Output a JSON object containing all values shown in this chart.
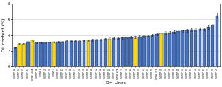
{
  "xlabel": "DH Lines",
  "ylabel": "Oil content (%)",
  "ylim": [
    0,
    8
  ],
  "yticks": [
    0,
    2,
    4,
    6,
    8
  ],
  "n_bars": 48,
  "values": [
    2.4,
    2.85,
    2.9,
    3.15,
    3.3,
    3.05,
    3.05,
    3.08,
    3.1,
    3.12,
    3.15,
    3.18,
    3.2,
    3.22,
    3.25,
    3.28,
    3.3,
    3.35,
    3.38,
    3.4,
    3.45,
    3.5,
    3.55,
    3.6,
    3.62,
    3.65,
    3.68,
    3.72,
    3.75,
    3.8,
    3.85,
    3.9,
    4.0,
    4.1,
    4.2,
    4.3,
    4.35,
    4.4,
    4.5,
    4.55,
    4.6,
    4.65,
    4.7,
    4.75,
    4.8,
    5.0,
    5.2,
    6.5
  ],
  "errors": [
    0.06,
    0.08,
    0.09,
    0.12,
    0.09,
    0.06,
    0.06,
    0.07,
    0.07,
    0.07,
    0.08,
    0.08,
    0.09,
    0.09,
    0.09,
    0.09,
    0.1,
    0.1,
    0.1,
    0.1,
    0.1,
    0.1,
    0.1,
    0.12,
    0.12,
    0.12,
    0.12,
    0.12,
    0.12,
    0.12,
    0.12,
    0.13,
    0.14,
    0.15,
    0.15,
    0.15,
    0.15,
    0.15,
    0.16,
    0.16,
    0.17,
    0.17,
    0.18,
    0.18,
    0.18,
    0.2,
    0.22,
    0.28
  ],
  "yellow_indices": [
    1,
    2,
    4,
    9,
    17,
    22,
    28,
    34
  ],
  "tick_labels": [
    "SOWP 92",
    "SOWP 84",
    "SOWP 27",
    "SOWP 93",
    "SOWP 103A",
    "SOWP 4A",
    "SOWP 6",
    "SOWP 10",
    "SOWP 34",
    "SOWP 3",
    "SOWP 42",
    "SOWP 43",
    "SOWP 13",
    "SOWP 48",
    "SOWP 62",
    "SOWP 11",
    "SOWP 60",
    "SOWP 31",
    "SOWP 26",
    "SOWP 12",
    "SOWP 32",
    "SOWP 41",
    "SOWP 44",
    "SOWP 20",
    "SOWP 27B",
    "SOWP 13",
    "SOWP 14",
    "SOWP 41",
    "SOWP 11",
    "SOWP 43",
    "SOWP 61",
    "SOWP 63",
    "SOWP 70",
    "SOWP 41B",
    "SOWP 25",
    "SOWP 17",
    "SOWP 18",
    "SOWP 25",
    "SOWP 41",
    "SOWP 11",
    "SOWP 43",
    "SOWP 44",
    "SOWP 14",
    "SOWP 61",
    "SOWP 43",
    "SOWP 17",
    "SOWP 25",
    "SOWP 17"
  ],
  "bar_color_blue": "#4472C4",
  "bar_color_yellow": "#FFD700",
  "bg_color": "#FFFFFF",
  "grid_color": "#CCCCCC",
  "fontsize_axis_label": 4.5,
  "fontsize_ytick": 3.5,
  "fontsize_xtick": 2.2
}
